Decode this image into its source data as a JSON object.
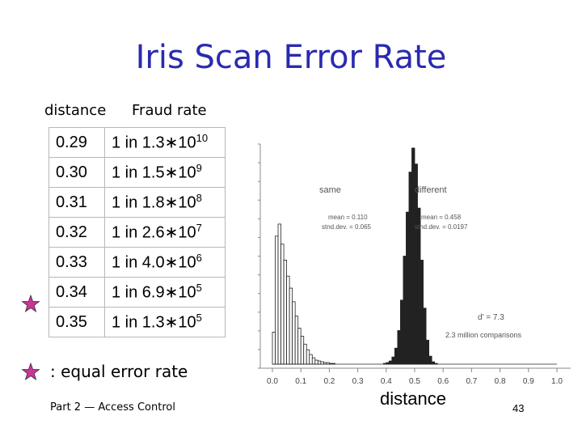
{
  "slide": {
    "title": "Iris Scan Error Rate",
    "header_distance": "distance",
    "header_fraud": "Fraud rate",
    "rows": [
      {
        "distance": "0.29",
        "fraud_prefix": "1 in 1.3",
        "exp": "10"
      },
      {
        "distance": "0.30",
        "fraud_prefix": "1 in 1.5",
        "exp": "9"
      },
      {
        "distance": "0.31",
        "fraud_prefix": "1 in 1.8",
        "exp": "8"
      },
      {
        "distance": "0.32",
        "fraud_prefix": "1 in 2.6",
        "exp": "7"
      },
      {
        "distance": "0.33",
        "fraud_prefix": "1 in 4.0",
        "exp": "6"
      },
      {
        "distance": "0.34",
        "fraud_prefix": "1 in 6.9",
        "exp": "5"
      },
      {
        "distance": "0.35",
        "fraud_prefix": "1 in 1.3",
        "exp": "5"
      }
    ],
    "times_symbol": "∗",
    "eer_label": ": equal error rate",
    "footer_left": "Part 2 — Access Control",
    "footer_distance": "distance",
    "page_number": "43",
    "colors": {
      "title": "#2a2ab0",
      "star_fill": "#cc3399",
      "star_edge": "#333333"
    }
  },
  "chart_data": {
    "type": "bar",
    "xlim": [
      0,
      1
    ],
    "x_ticks": [
      "0.0",
      "0.1",
      "0.2",
      "0.3",
      "0.4",
      "0.5",
      "0.6",
      "0.7",
      "0.8",
      "0.9",
      "1.0"
    ],
    "bin_width": 0.01,
    "series": [
      {
        "name": "same",
        "mean_label": "mean = 0.110",
        "sd_label": "stnd.dev. = 0.065",
        "fill": "#ffffff",
        "bin_start": 0.0,
        "values": [
          40,
          160,
          175,
          150,
          130,
          110,
          95,
          78,
          60,
          45,
          35,
          25,
          18,
          12,
          8,
          5,
          4,
          3,
          2,
          2,
          1,
          1
        ]
      },
      {
        "name": "different",
        "mean_label": "mean = 0.458",
        "sd_label": "stnd.dev. = 0.0197",
        "fill": "#222222",
        "bin_start": 0.39,
        "values": [
          1,
          2,
          4,
          9,
          20,
          42,
          80,
          135,
          190,
          240,
          270,
          250,
          195,
          130,
          70,
          30,
          10,
          3,
          1
        ]
      }
    ],
    "annotations": [
      "d' = 7.3",
      "2.3 million comparisons"
    ]
  }
}
